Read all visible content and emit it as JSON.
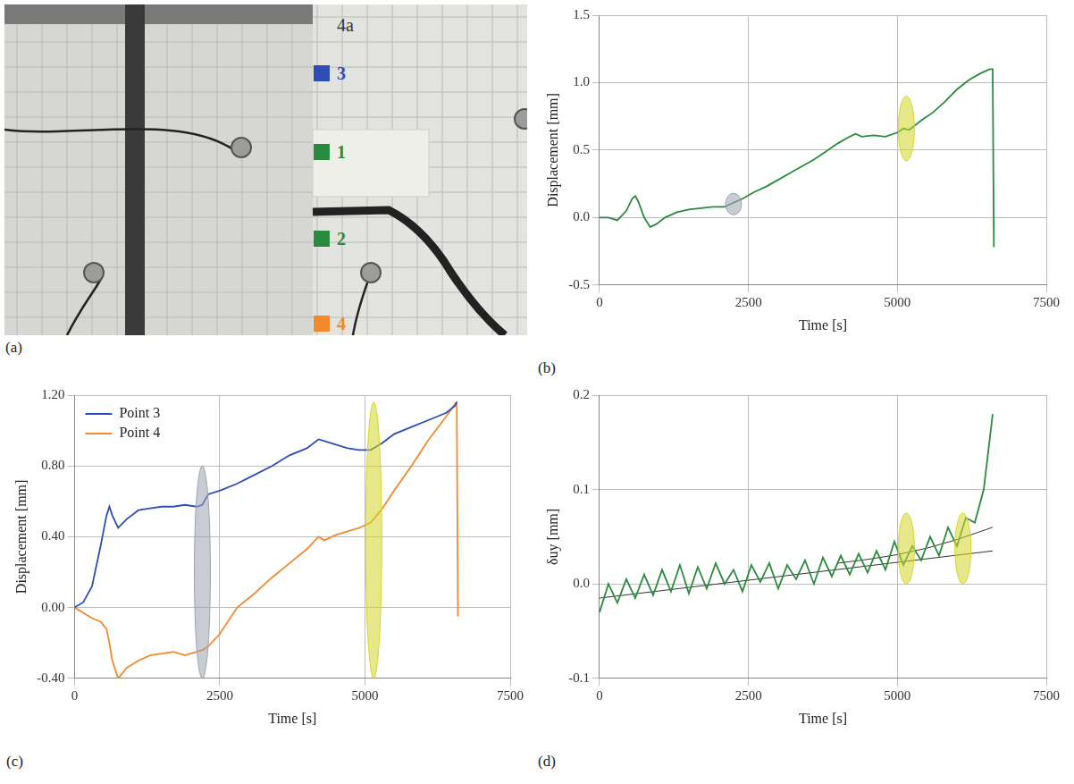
{
  "panel_a": {
    "panel_label": "(a)",
    "label": "4a",
    "points": [
      {
        "label": "3",
        "color": "#2f4db5"
      },
      {
        "label": "1",
        "color": "#2a8a3e"
      },
      {
        "label": "2",
        "color": "#2a8a3e"
      },
      {
        "label": "4",
        "color": "#f08a2c"
      }
    ]
  },
  "chart_data": [
    {
      "panel_label": "(b)",
      "type": "line",
      "x_label": "Time [s]",
      "y_label": "Displacement [mm]",
      "xlim": [
        0,
        7500
      ],
      "xticks": [
        0,
        2500,
        5000,
        7500
      ],
      "ylim": [
        -0.5,
        1.5
      ],
      "yticks": [
        -0.5,
        {
          "value": 0,
          "label": "0.0"
        },
        0.5,
        {
          "value": 1,
          "label": "1.0"
        },
        1.5
      ],
      "grid": true,
      "series": [
        {
          "color": "#2a8a3e",
          "x": [
            0,
            150,
            300,
            450,
            550,
            600,
            650,
            750,
            850,
            950,
            1100,
            1300,
            1500,
            1700,
            1900,
            2100,
            2200,
            2300,
            2400,
            2600,
            2800,
            3000,
            3200,
            3400,
            3600,
            3800,
            4000,
            4200,
            4300,
            4400,
            4600,
            4800,
            5000,
            5100,
            5200,
            5400,
            5600,
            5800,
            6000,
            6200,
            6400,
            6550,
            6600,
            6620
          ],
          "values": [
            0,
            0,
            -0.02,
            0.05,
            0.14,
            0.16,
            0.12,
            0,
            -0.07,
            -0.05,
            0,
            0.04,
            0.06,
            0.07,
            0.08,
            0.08,
            0.1,
            0.12,
            0.14,
            0.19,
            0.23,
            0.28,
            0.33,
            0.38,
            0.43,
            0.49,
            0.55,
            0.6,
            0.62,
            0.6,
            0.61,
            0.6,
            0.63,
            0.66,
            0.65,
            0.72,
            0.78,
            0.86,
            0.95,
            1.02,
            1.07,
            1.1,
            1.1,
            -0.22
          ]
        }
      ],
      "highlights": [
        {
          "x": 2250,
          "y_range": [
            0.02,
            0.18
          ],
          "color": "#9ea3b0"
        },
        {
          "x": 5150,
          "y_range": [
            0.42,
            0.9
          ],
          "color": "#d4d62a"
        }
      ]
    },
    {
      "panel_label": "(c)",
      "type": "line",
      "x_label": "Time [s]",
      "y_label": "Displacement [mm]",
      "xlim": [
        0,
        7500
      ],
      "xticks": [
        0,
        2500,
        5000,
        7500
      ],
      "ylim": [
        -0.4,
        1.2
      ],
      "yticks": [
        {
          "value": -0.4,
          "label": "-0.40"
        },
        {
          "value": 0,
          "label": "0.00"
        },
        {
          "value": 0.4,
          "label": "0.40"
        },
        {
          "value": 0.8,
          "label": "0.80"
        },
        {
          "value": 1.2,
          "label": "1.20"
        }
      ],
      "grid": true,
      "legend": "upper left",
      "series": [
        {
          "name": "Point 3",
          "color": "#2f4db5",
          "x": [
            0,
            150,
            300,
            450,
            550,
            600,
            650,
            750,
            900,
            1100,
            1300,
            1500,
            1700,
            1900,
            2100,
            2200,
            2300,
            2500,
            2800,
            3100,
            3400,
            3700,
            4000,
            4200,
            4300,
            4500,
            4700,
            4900,
            5100,
            5300,
            5500,
            5800,
            6100,
            6400,
            6550,
            6580,
            6600
          ],
          "values": [
            0,
            0.03,
            0.12,
            0.35,
            0.52,
            0.57,
            0.52,
            0.45,
            0.5,
            0.55,
            0.56,
            0.57,
            0.57,
            0.58,
            0.57,
            0.58,
            0.64,
            0.66,
            0.7,
            0.75,
            0.8,
            0.86,
            0.9,
            0.95,
            0.94,
            0.92,
            0.9,
            0.89,
            0.89,
            0.93,
            0.98,
            1.02,
            1.06,
            1.1,
            1.14,
            1.16,
            null
          ]
        },
        {
          "name": "Point 4",
          "color": "#f08a2c",
          "x": [
            0,
            150,
            300,
            450,
            550,
            600,
            650,
            750,
            900,
            1100,
            1300,
            1500,
            1700,
            1900,
            2100,
            2200,
            2300,
            2500,
            2800,
            3100,
            3400,
            3700,
            4000,
            4200,
            4300,
            4500,
            4700,
            4900,
            5100,
            5300,
            5500,
            5800,
            6100,
            6400,
            6550,
            6580,
            6600
          ],
          "values": [
            0,
            -0.03,
            -0.06,
            -0.08,
            -0.12,
            -0.2,
            -0.3,
            -0.4,
            -0.34,
            -0.3,
            -0.27,
            -0.26,
            -0.25,
            -0.27,
            -0.25,
            -0.24,
            -0.22,
            -0.15,
            0,
            0.08,
            0.17,
            0.25,
            0.33,
            0.4,
            0.38,
            0.41,
            0.43,
            0.45,
            0.48,
            0.56,
            0.66,
            0.8,
            0.95,
            1.08,
            1.15,
            1.16,
            -0.05
          ]
        }
      ],
      "highlights": [
        {
          "x": 2200,
          "y_range": [
            -0.4,
            0.8
          ],
          "color": "#9ea3b0"
        },
        {
          "x": 5150,
          "y_range": [
            -0.4,
            1.16
          ],
          "color": "#d4d62a"
        }
      ]
    },
    {
      "panel_label": "(d)",
      "type": "line",
      "x_label": "Time [s]",
      "y_label": "δuy [mm]",
      "xlim": [
        0,
        7500
      ],
      "xticks": [
        0,
        2500,
        5000,
        7500
      ],
      "ylim": [
        -0.1,
        0.2
      ],
      "yticks": [
        -0.1,
        {
          "value": 0,
          "label": "0.0"
        },
        0.1,
        0.2
      ],
      "grid": true,
      "series": [
        {
          "color": "#2a8a3e",
          "x": [
            0,
            150,
            300,
            450,
            600,
            750,
            900,
            1050,
            1200,
            1350,
            1500,
            1650,
            1800,
            1950,
            2100,
            2250,
            2400,
            2550,
            2700,
            2850,
            3000,
            3150,
            3300,
            3450,
            3600,
            3750,
            3900,
            4050,
            4200,
            4350,
            4500,
            4650,
            4800,
            4950,
            5100,
            5250,
            5400,
            5550,
            5700,
            5850,
            6000,
            6150,
            6300,
            6450,
            6600
          ],
          "values": [
            -0.03,
            0,
            -0.02,
            0.005,
            -0.015,
            0.01,
            -0.012,
            0.015,
            -0.008,
            0.02,
            -0.01,
            0.018,
            -0.005,
            0.022,
            0,
            0.015,
            -0.008,
            0.02,
            0.002,
            0.022,
            -0.005,
            0.02,
            0.005,
            0.025,
            0,
            0.028,
            0.008,
            0.03,
            0.01,
            0.032,
            0.012,
            0.035,
            0.015,
            0.045,
            0.02,
            0.04,
            0.025,
            0.05,
            0.03,
            0.06,
            0.04,
            0.07,
            0.065,
            0.1,
            0.18
          ]
        },
        {
          "color": "#333333",
          "x": [
            0,
            6600
          ],
          "values": [
            -0.015,
            0.035
          ]
        },
        {
          "color": "#333333",
          "x": [
            4000,
            4500,
            5000,
            5500,
            6000,
            6600
          ],
          "values": [
            0.022,
            0.026,
            0.031,
            0.038,
            0.047,
            0.06
          ]
        }
      ],
      "highlights": [
        {
          "x": 5150,
          "y_range": [
            0,
            0.075
          ],
          "color": "#d4d62a"
        },
        {
          "x": 6100,
          "y_range": [
            0,
            0.075
          ],
          "color": "#d4d62a"
        }
      ]
    }
  ]
}
